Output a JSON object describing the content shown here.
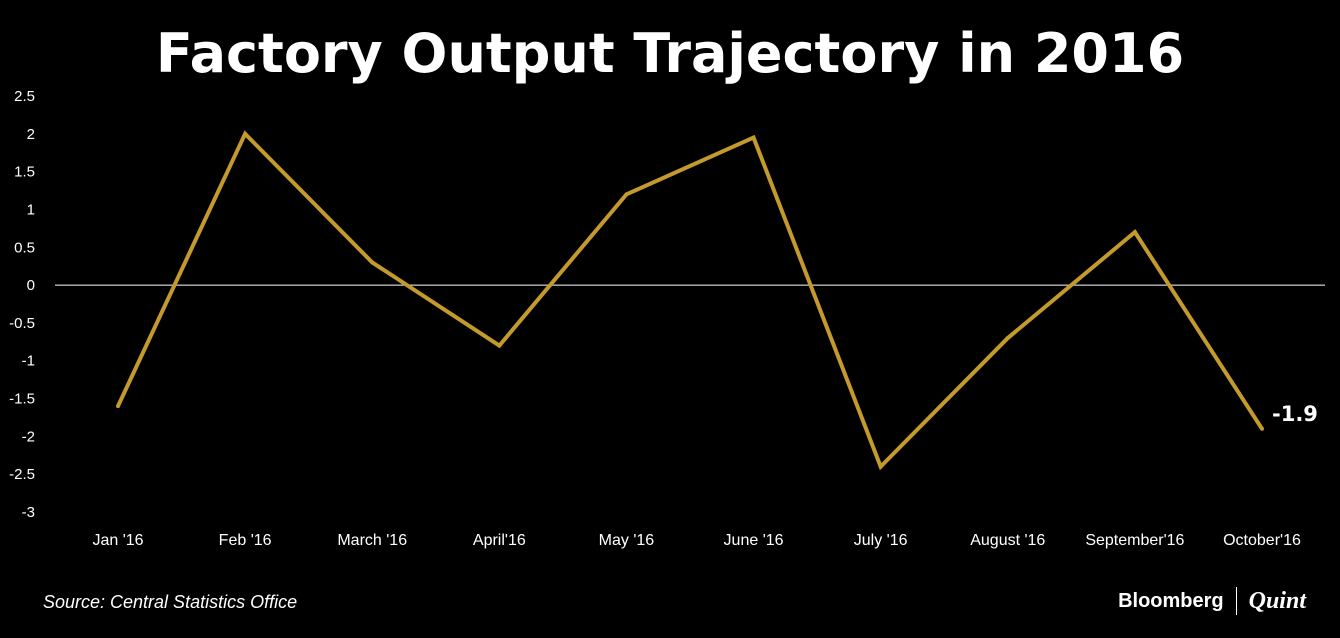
{
  "chart_data": {
    "type": "line",
    "title": "Factory Output Trajectory in 2016",
    "categories": [
      "Jan '16",
      "Feb '16",
      "March '16",
      "April'16",
      "May '16",
      "June '16",
      "July '16",
      "August '16",
      "September'16",
      "October'16"
    ],
    "series": [
      {
        "values": [
          -1.6,
          2.0,
          0.3,
          -0.8,
          1.2,
          1.95,
          -2.4,
          -0.7,
          0.7,
          -1.9
        ]
      }
    ],
    "yticks": [
      "2.5",
      "2",
      "1.5",
      "1",
      "0.5",
      "0",
      "-0.5",
      "-1",
      "-1.5",
      "-2",
      "-2.5",
      "-3"
    ],
    "ylim": [
      -3,
      2.5
    ],
    "data_label": "-1.9",
    "grid": false,
    "legend": "none",
    "line_color": "#C49A2C",
    "zero_line_color": "#FFFFFF"
  },
  "footer": {
    "source": "Source: Central Statistics Office",
    "brand_primary": "Bloomberg",
    "brand_secondary": "Quint"
  }
}
